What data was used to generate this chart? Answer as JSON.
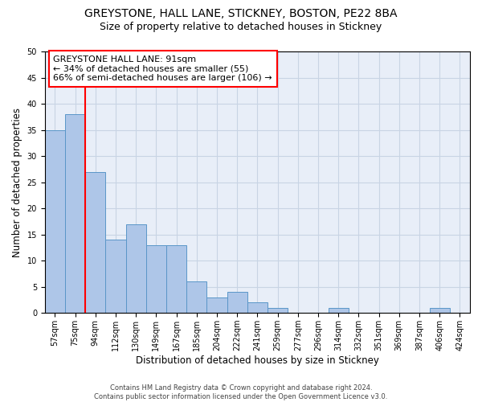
{
  "title_line1": "GREYSTONE, HALL LANE, STICKNEY, BOSTON, PE22 8BA",
  "title_line2": "Size of property relative to detached houses in Stickney",
  "xlabel": "Distribution of detached houses by size in Stickney",
  "ylabel": "Number of detached properties",
  "footnote": "Contains HM Land Registry data © Crown copyright and database right 2024.\nContains public sector information licensed under the Open Government Licence v3.0.",
  "bin_labels": [
    "57sqm",
    "75sqm",
    "94sqm",
    "112sqm",
    "130sqm",
    "149sqm",
    "167sqm",
    "185sqm",
    "204sqm",
    "222sqm",
    "241sqm",
    "259sqm",
    "277sqm",
    "296sqm",
    "314sqm",
    "332sqm",
    "351sqm",
    "369sqm",
    "387sqm",
    "406sqm",
    "424sqm"
  ],
  "bar_values": [
    35,
    38,
    27,
    14,
    17,
    13,
    13,
    6,
    3,
    4,
    2,
    1,
    0,
    0,
    1,
    0,
    0,
    0,
    0,
    1,
    0
  ],
  "bar_color": "#aec6e8",
  "bar_edge_color": "#5a96c8",
  "vline_color": "red",
  "vline_x": 1.5,
  "annotation_text": "GREYSTONE HALL LANE: 91sqm\n← 34% of detached houses are smaller (55)\n66% of semi-detached houses are larger (106) →",
  "annotation_box_color": "white",
  "annotation_box_edge_color": "red",
  "ylim": [
    0,
    50
  ],
  "yticks": [
    0,
    5,
    10,
    15,
    20,
    25,
    30,
    35,
    40,
    45,
    50
  ],
  "grid_color": "#c8d4e4",
  "bg_color": "#e8eef8",
  "title_fontsize": 10,
  "subtitle_fontsize": 9,
  "axis_label_fontsize": 8.5,
  "tick_fontsize": 7,
  "annotation_fontsize": 8
}
